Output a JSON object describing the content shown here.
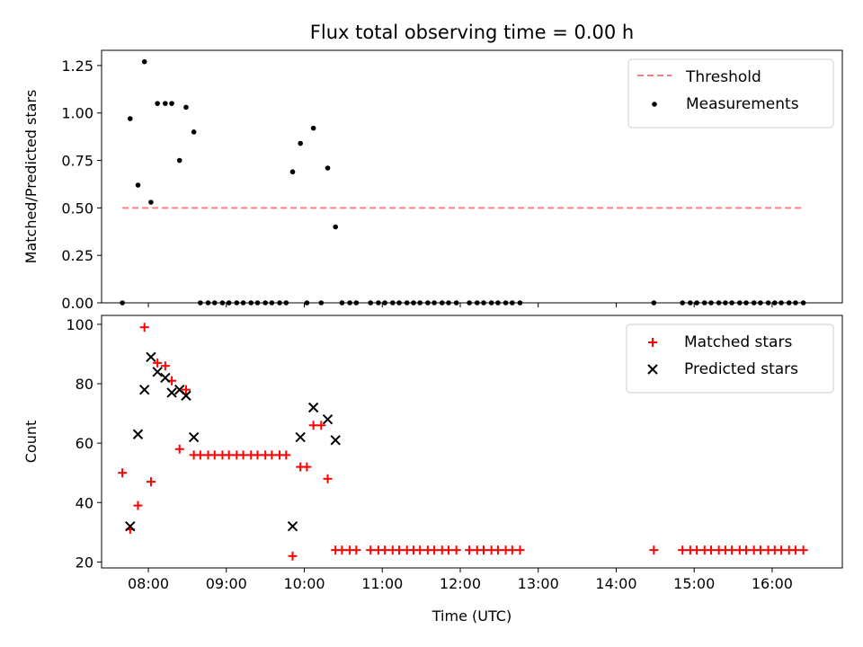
{
  "title": "Flux total observing time = 0.00 h",
  "xlabel": "Time (UTC)",
  "x_ticks": [
    "08:00",
    "09:00",
    "10:00",
    "11:00",
    "12:00",
    "13:00",
    "14:00",
    "15:00",
    "16:00"
  ],
  "colors": {
    "threshold": "#ff7f7f",
    "measurements": "#000000",
    "matched": "#ff0000",
    "predicted": "#000000"
  },
  "chart_data": [
    {
      "type": "scatter",
      "ylabel": "Matched/Predicted stars",
      "xlim": [
        "07:24",
        "16:54"
      ],
      "ylim": [
        0,
        1.33
      ],
      "y_ticks": [
        "0.00",
        "0.25",
        "0.50",
        "0.75",
        "1.00",
        "1.25"
      ],
      "legend_position": "top-right",
      "threshold": {
        "name": "Threshold",
        "value": 0.5,
        "x_range": [
          "07:40",
          "16:24"
        ]
      },
      "series": [
        {
          "name": "Measurements",
          "points": [
            [
              "07:40",
              0
            ],
            [
              "07:46",
              0.97
            ],
            [
              "07:52",
              0.62
            ],
            [
              "07:57",
              1.27
            ],
            [
              "08:02",
              0.53
            ],
            [
              "08:07",
              1.05
            ],
            [
              "08:13",
              1.05
            ],
            [
              "08:18",
              1.05
            ],
            [
              "08:24",
              0.75
            ],
            [
              "08:29",
              1.03
            ],
            [
              "08:35",
              0.9
            ],
            [
              "08:40",
              0
            ],
            [
              "08:46",
              0
            ],
            [
              "08:51",
              0
            ],
            [
              "08:57",
              0
            ],
            [
              "09:02",
              0
            ],
            [
              "09:08",
              0
            ],
            [
              "09:13",
              0
            ],
            [
              "09:19",
              0
            ],
            [
              "09:24",
              0
            ],
            [
              "09:30",
              0
            ],
            [
              "09:35",
              0
            ],
            [
              "09:41",
              0
            ],
            [
              "09:46",
              0
            ],
            [
              "09:51",
              0.69
            ],
            [
              "09:57",
              0.84
            ],
            [
              "10:02",
              0
            ],
            [
              "10:07",
              0.92
            ],
            [
              "10:13",
              0
            ],
            [
              "10:18",
              0.71
            ],
            [
              "10:24",
              0.4
            ],
            [
              "10:29",
              0
            ],
            [
              "10:35",
              0
            ],
            [
              "10:40",
              0
            ],
            [
              "10:51",
              0
            ],
            [
              "10:57",
              0
            ],
            [
              "11:02",
              0
            ],
            [
              "11:08",
              0
            ],
            [
              "11:13",
              0
            ],
            [
              "11:19",
              0
            ],
            [
              "11:24",
              0
            ],
            [
              "11:29",
              0
            ],
            [
              "11:35",
              0
            ],
            [
              "11:40",
              0
            ],
            [
              "11:46",
              0
            ],
            [
              "11:51",
              0
            ],
            [
              "11:57",
              0
            ],
            [
              "12:07",
              0
            ],
            [
              "12:13",
              0
            ],
            [
              "12:18",
              0
            ],
            [
              "12:24",
              0
            ],
            [
              "12:29",
              0
            ],
            [
              "12:35",
              0
            ],
            [
              "12:40",
              0
            ],
            [
              "12:46",
              0
            ],
            [
              "14:29",
              0
            ],
            [
              "14:51",
              0
            ],
            [
              "14:57",
              0
            ],
            [
              "15:02",
              0
            ],
            [
              "15:08",
              0
            ],
            [
              "15:13",
              0
            ],
            [
              "15:19",
              0
            ],
            [
              "15:24",
              0
            ],
            [
              "15:29",
              0
            ],
            [
              "15:35",
              0
            ],
            [
              "15:40",
              0
            ],
            [
              "15:46",
              0
            ],
            [
              "15:51",
              0
            ],
            [
              "15:57",
              0
            ],
            [
              "16:02",
              0
            ],
            [
              "16:07",
              0
            ],
            [
              "16:13",
              0
            ],
            [
              "16:18",
              0
            ],
            [
              "16:24",
              0
            ]
          ]
        }
      ]
    },
    {
      "type": "scatter",
      "ylabel": "Count",
      "xlim": [
        "07:24",
        "16:54"
      ],
      "ylim": [
        18,
        103
      ],
      "y_ticks": [
        "20",
        "40",
        "60",
        "80",
        "100"
      ],
      "legend_position": "top-right",
      "series": [
        {
          "name": "Matched stars",
          "marker": "plus",
          "points": [
            [
              "07:40",
              50
            ],
            [
              "07:46",
              31
            ],
            [
              "07:52",
              39
            ],
            [
              "07:57",
              99
            ],
            [
              "08:02",
              47
            ],
            [
              "08:07",
              87
            ],
            [
              "08:13",
              86
            ],
            [
              "08:18",
              81
            ],
            [
              "08:24",
              58
            ],
            [
              "08:29",
              78
            ],
            [
              "08:35",
              56
            ],
            [
              "08:40",
              56
            ],
            [
              "08:46",
              56
            ],
            [
              "08:51",
              56
            ],
            [
              "08:57",
              56
            ],
            [
              "09:02",
              56
            ],
            [
              "09:08",
              56
            ],
            [
              "09:13",
              56
            ],
            [
              "09:19",
              56
            ],
            [
              "09:24",
              56
            ],
            [
              "09:30",
              56
            ],
            [
              "09:35",
              56
            ],
            [
              "09:41",
              56
            ],
            [
              "09:46",
              56
            ],
            [
              "09:51",
              22
            ],
            [
              "09:57",
              52
            ],
            [
              "10:02",
              52
            ],
            [
              "10:07",
              66
            ],
            [
              "10:13",
              66
            ],
            [
              "10:18",
              48
            ],
            [
              "10:24",
              24
            ],
            [
              "10:29",
              24
            ],
            [
              "10:35",
              24
            ],
            [
              "10:40",
              24
            ],
            [
              "10:51",
              24
            ],
            [
              "10:57",
              24
            ],
            [
              "11:02",
              24
            ],
            [
              "11:08",
              24
            ],
            [
              "11:13",
              24
            ],
            [
              "11:19",
              24
            ],
            [
              "11:24",
              24
            ],
            [
              "11:29",
              24
            ],
            [
              "11:35",
              24
            ],
            [
              "11:40",
              24
            ],
            [
              "11:46",
              24
            ],
            [
              "11:51",
              24
            ],
            [
              "11:57",
              24
            ],
            [
              "12:07",
              24
            ],
            [
              "12:13",
              24
            ],
            [
              "12:18",
              24
            ],
            [
              "12:24",
              24
            ],
            [
              "12:29",
              24
            ],
            [
              "12:35",
              24
            ],
            [
              "12:40",
              24
            ],
            [
              "12:46",
              24
            ],
            [
              "14:29",
              24
            ],
            [
              "14:51",
              24
            ],
            [
              "14:57",
              24
            ],
            [
              "15:02",
              24
            ],
            [
              "15:08",
              24
            ],
            [
              "15:13",
              24
            ],
            [
              "15:19",
              24
            ],
            [
              "15:24",
              24
            ],
            [
              "15:29",
              24
            ],
            [
              "15:35",
              24
            ],
            [
              "15:40",
              24
            ],
            [
              "15:46",
              24
            ],
            [
              "15:51",
              24
            ],
            [
              "15:57",
              24
            ],
            [
              "16:02",
              24
            ],
            [
              "16:07",
              24
            ],
            [
              "16:13",
              24
            ],
            [
              "16:18",
              24
            ],
            [
              "16:24",
              24
            ]
          ]
        },
        {
          "name": "Predicted stars",
          "marker": "x",
          "points": [
            [
              "07:46",
              32
            ],
            [
              "07:52",
              63
            ],
            [
              "07:57",
              78
            ],
            [
              "08:02",
              89
            ],
            [
              "08:07",
              84
            ],
            [
              "08:13",
              82
            ],
            [
              "08:18",
              77
            ],
            [
              "08:24",
              78
            ],
            [
              "08:29",
              76
            ],
            [
              "08:35",
              62
            ],
            [
              "09:51",
              32
            ],
            [
              "09:57",
              62
            ],
            [
              "10:07",
              72
            ],
            [
              "10:18",
              68
            ],
            [
              "10:24",
              61
            ]
          ]
        }
      ]
    }
  ]
}
